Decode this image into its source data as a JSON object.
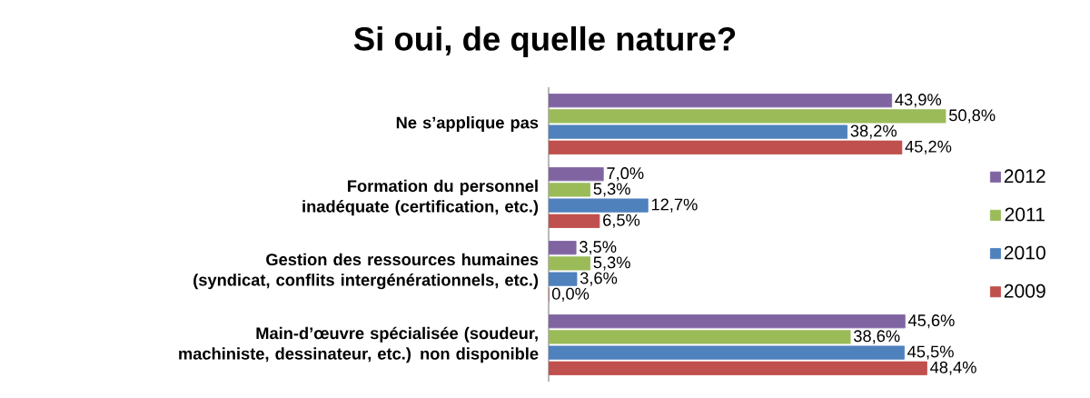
{
  "chart_data": {
    "type": "bar",
    "orientation": "horizontal",
    "title": "Si oui, de quelle nature?",
    "categories": [
      "Ne s’applique pas",
      "Formation du personnel inadéquate (certification, etc.)",
      "Gestion des ressources humaines (syndicat, conflits intergénérationnels, etc.)",
      "Main-d’œuvre spécialisée (soudeur, machiniste, dessinateur, etc.) non disponible"
    ],
    "series": [
      {
        "name": "2012",
        "color": "#8064a2",
        "values": [
          43.9,
          7.0,
          3.5,
          45.6
        ],
        "value_labels": [
          "43,9%",
          "7,0%",
          "3,5%",
          "45,6%"
        ]
      },
      {
        "name": "2011",
        "color": "#9bbb59",
        "values": [
          50.8,
          5.3,
          5.3,
          38.6
        ],
        "value_labels": [
          "50,8%",
          "5,3%",
          "5,3%",
          "38,6%"
        ]
      },
      {
        "name": "2010",
        "color": "#4f81bd",
        "values": [
          38.2,
          12.7,
          3.6,
          45.5
        ],
        "value_labels": [
          "38,2%",
          "12,7%",
          "3,6%",
          "45,5%"
        ]
      },
      {
        "name": "2009",
        "color": "#c0504d",
        "values": [
          45.2,
          6.5,
          0.0,
          48.4
        ],
        "value_labels": [
          "45,2%",
          "6,5%",
          "0,0%",
          "48,4%"
        ]
      }
    ],
    "legend": "right"
  }
}
